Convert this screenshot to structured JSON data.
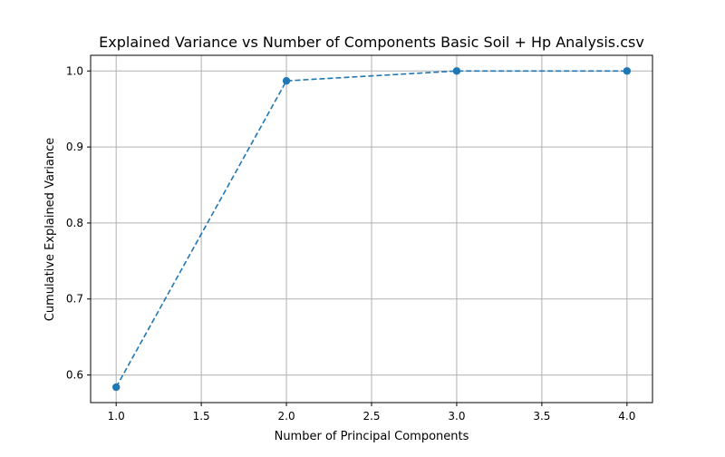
{
  "chart_data": {
    "type": "line",
    "title": "Explained Variance vs Number of Components Basic Soil + Hp Analysis.csv",
    "xlabel": "Number of Principal Components",
    "ylabel": "Cumulative Explained Variance",
    "xlim": [
      0.85,
      4.15
    ],
    "ylim": [
      0.5637,
      1.0206
    ],
    "xticks": [
      1.0,
      1.5,
      2.0,
      2.5,
      3.0,
      3.5,
      4.0
    ],
    "xtick_labels": [
      "1.0",
      "1.5",
      "2.0",
      "2.5",
      "3.0",
      "3.5",
      "4.0"
    ],
    "yticks": [
      0.6,
      0.7,
      0.8,
      0.9,
      1.0
    ],
    "ytick_labels": [
      "0.6",
      "0.7",
      "0.8",
      "0.9",
      "1.0"
    ],
    "grid": true,
    "series": [
      {
        "x": [
          1,
          2,
          3,
          4
        ],
        "values": [
          0.584,
          0.987,
          1.0,
          1.0
        ],
        "color": "#1f77b4",
        "linestyle": "dashed",
        "marker": "circle"
      }
    ]
  }
}
